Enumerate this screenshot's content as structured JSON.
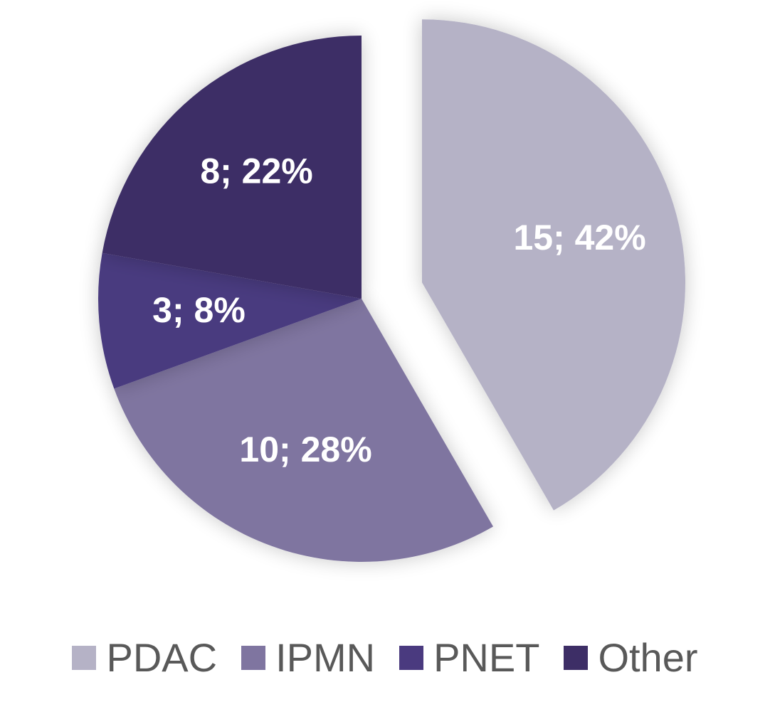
{
  "chart_data": {
    "type": "pie",
    "title": "",
    "legend_position": "bottom",
    "slices": [
      {
        "name": "PDAC",
        "value": 15,
        "percent": 42,
        "label": "15; 42%",
        "color": "#b5b2c6",
        "exploded": true
      },
      {
        "name": "IPMN",
        "value": 10,
        "percent": 28,
        "label": "10; 28%",
        "color": "#7f75a0",
        "exploded": false
      },
      {
        "name": "PNET",
        "value": 3,
        "percent": 8,
        "label": "3; 8%",
        "color": "#4a3a7f",
        "exploded": false
      },
      {
        "name": "Other",
        "value": 8,
        "percent": 22,
        "label": "8; 22%",
        "color": "#3d2e66",
        "exploded": false
      }
    ]
  }
}
